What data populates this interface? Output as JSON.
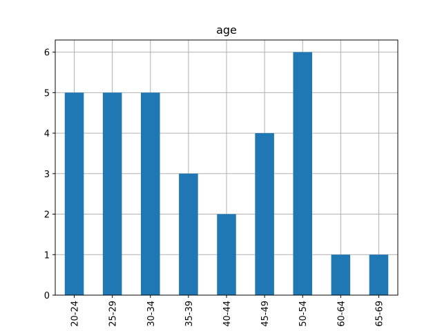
{
  "chart_data": {
    "type": "bar",
    "title": "age",
    "xlabel": "",
    "ylabel": "",
    "categories": [
      "20-24",
      "25-29",
      "30-34",
      "35-39",
      "40-44",
      "45-49",
      "50-54",
      "60-64",
      "65-69"
    ],
    "values": [
      5,
      5,
      5,
      3,
      2,
      4,
      6,
      1,
      1
    ],
    "ylim": [
      0,
      6.3
    ],
    "yticks": [
      0,
      1,
      2,
      3,
      4,
      5,
      6
    ],
    "grid": true,
    "legend": "none",
    "colors": {
      "bar": "#1f77b4",
      "grid": "#b0b0b0",
      "axis": "#000000"
    }
  }
}
